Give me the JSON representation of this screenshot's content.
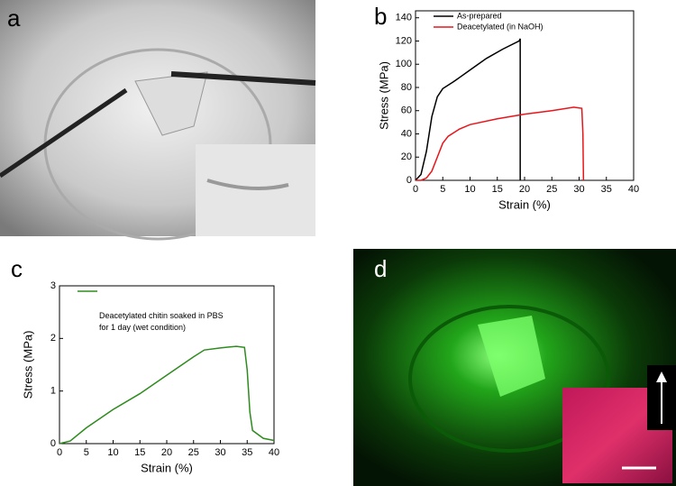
{
  "panel_labels": [
    "a",
    "b",
    "c",
    "d"
  ],
  "chart_data": [
    {
      "type": "line",
      "xlabel": "Strain (%)",
      "ylabel": "Stress (MPa)",
      "xlim": [
        0,
        40
      ],
      "xticks": [
        0,
        5,
        10,
        15,
        20,
        25,
        30,
        35,
        40
      ],
      "ylim": [
        0,
        146
      ],
      "yticks": [
        0,
        20,
        40,
        60,
        80,
        100,
        120,
        140
      ],
      "legend": "upper left",
      "series": [
        {
          "name": "As-prepared",
          "color": "#000000",
          "x": [
            0,
            1,
            2,
            3,
            4,
            5,
            7,
            10,
            13,
            16,
            19,
            19.2,
            19.2
          ],
          "values": [
            0,
            5,
            25,
            55,
            72,
            79,
            85,
            95,
            105,
            113,
            120,
            122,
            0
          ]
        },
        {
          "name": "Deacetylated (in NaOH)",
          "color": "#e8151b",
          "x": [
            0,
            1,
            2,
            3,
            4,
            5,
            6,
            8,
            10,
            15,
            20,
            25,
            29,
            30.5,
            30.7,
            30.8
          ],
          "values": [
            0,
            0,
            2,
            8,
            20,
            32,
            38,
            44,
            48,
            53,
            57,
            60,
            63,
            62,
            40,
            0
          ]
        }
      ]
    },
    {
      "type": "line",
      "xlabel": "Strain (%)",
      "ylabel": "Stress (MPa)",
      "xlim": [
        0,
        40
      ],
      "xticks": [
        0,
        5,
        10,
        15,
        20,
        25,
        30,
        35,
        40
      ],
      "ylim": [
        0,
        3
      ],
      "yticks": [
        0,
        1,
        2,
        3
      ],
      "legend": "upper left",
      "series": [
        {
          "name": "Deacetylated chitin soaked in PBS for 1 day (wet condition)",
          "color": "#2e8b1e",
          "x": [
            0,
            2,
            5,
            10,
            15,
            20,
            25,
            27,
            30,
            33,
            34.5,
            35,
            35.5,
            36,
            38,
            40
          ],
          "values": [
            0,
            0.05,
            0.3,
            0.65,
            0.95,
            1.3,
            1.65,
            1.78,
            1.82,
            1.85,
            1.83,
            1.4,
            0.6,
            0.25,
            0.1,
            0.06
          ]
        }
      ]
    }
  ]
}
